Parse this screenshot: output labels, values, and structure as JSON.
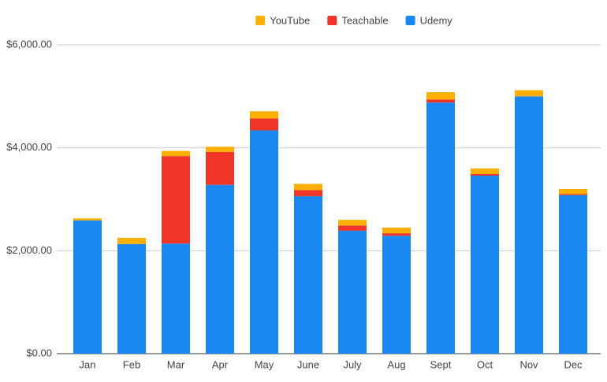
{
  "chart_data": {
    "type": "stacked-bar",
    "categories": [
      "Jan",
      "Feb",
      "Mar",
      "Apr",
      "May",
      "June",
      "July",
      "Aug",
      "Sept",
      "Oct",
      "Nov",
      "Dec"
    ],
    "series": [
      {
        "name": "YouTube",
        "color": "#f9b000",
        "values": [
          40,
          120,
          100,
          100,
          140,
          120,
          110,
          110,
          140,
          110,
          120,
          100
        ]
      },
      {
        "name": "Teachable",
        "color": "#ee3528",
        "values": [
          0,
          0,
          1700,
          640,
          230,
          120,
          100,
          50,
          60,
          30,
          0,
          20
        ]
      },
      {
        "name": "Udemy",
        "color": "#1b87f2",
        "values": [
          2590,
          2130,
          2140,
          3280,
          4340,
          3060,
          2390,
          2290,
          4880,
          3460,
          5000,
          3080
        ]
      }
    ],
    "ylim": [
      0,
      6000
    ],
    "yticks": [
      {
        "value": 0,
        "label": "$0.00"
      },
      {
        "value": 2000,
        "label": "$2,000.00"
      },
      {
        "value": 4000,
        "label": "$4,000.00"
      },
      {
        "value": 6000,
        "label": "$6,000.00"
      }
    ],
    "grid": true,
    "legend": "top"
  }
}
